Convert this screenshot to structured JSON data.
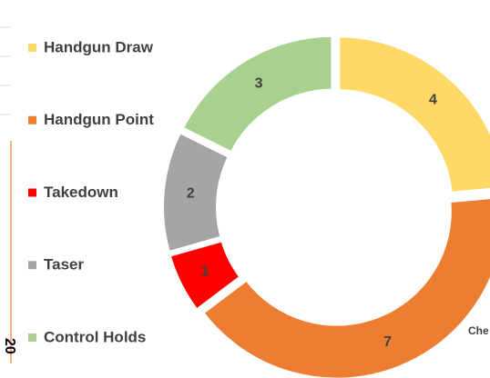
{
  "chart_data": {
    "type": "pie",
    "donut": true,
    "categories": [
      "Handgun Draw",
      "Handgun Point",
      "Takedown",
      "Taser",
      "Control Holds"
    ],
    "values": [
      4,
      7,
      1,
      2,
      3
    ],
    "colors": [
      "#ffd966",
      "#ed7d31",
      "#ff0000",
      "#a5a5a5",
      "#a9d18e"
    ],
    "legend": "left",
    "fragments": [
      "Che",
      "20"
    ]
  }
}
